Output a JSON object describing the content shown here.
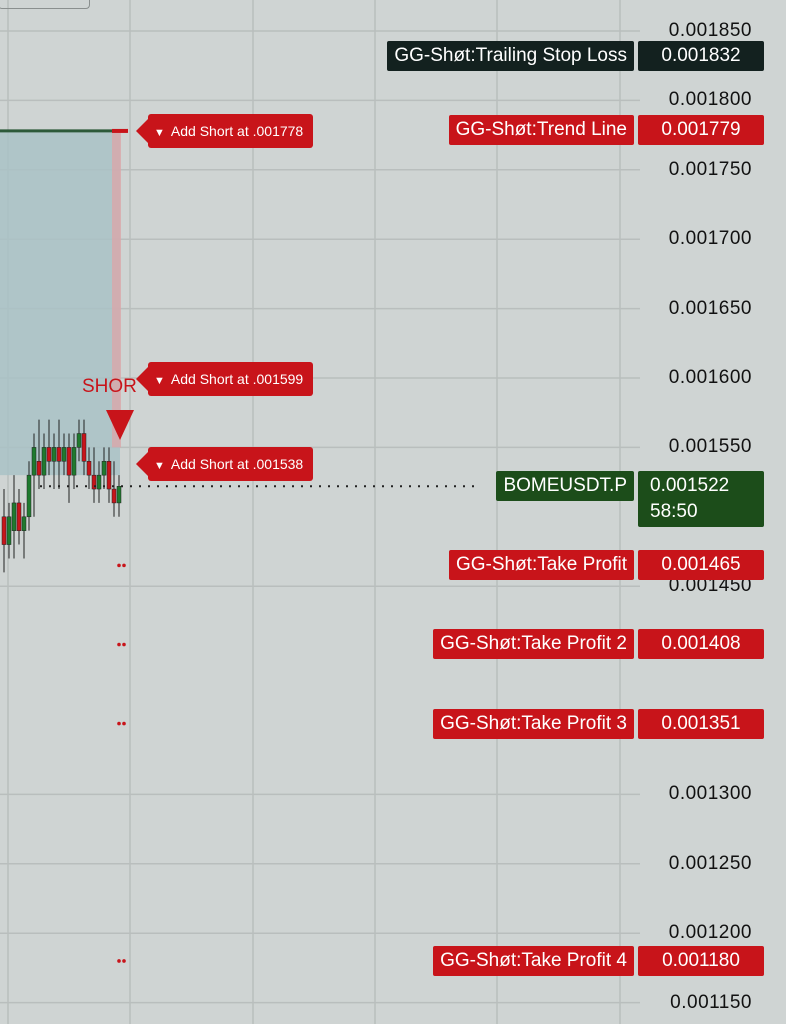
{
  "chart_data": {
    "type": "line",
    "symbol": "BOMEUSDT.P",
    "current_price": "0.001522",
    "countdown": "58:50",
    "y_axis_ticks": [
      "0.001850",
      "0.001800",
      "0.001750",
      "0.001700",
      "0.001650",
      "0.001600",
      "0.001550",
      "0.001450",
      "0.001300",
      "0.001250",
      "0.001200",
      "0.001150"
    ],
    "ylim": [
      0.001135,
      0.00187
    ],
    "price_lines": [
      {
        "name": "GG-Shøt:Trailing Stop Loss",
        "value": "0.001832",
        "style": "dark"
      },
      {
        "name": "GG-Shøt:Trend Line",
        "value": "0.001779",
        "style": "red"
      },
      {
        "name": "GG-Shøt:Take Profit",
        "value": "0.001465",
        "style": "red"
      },
      {
        "name": "GG-Shøt:Take Profit 2",
        "value": "0.001408",
        "style": "red"
      },
      {
        "name": "GG-Shøt:Take Profit 3",
        "value": "0.001351",
        "style": "red"
      },
      {
        "name": "GG-Shøt:Take Profit 4",
        "value": "0.001180",
        "style": "red"
      }
    ],
    "add_short_flags": [
      {
        "label": "Add Short at .001778",
        "price": 0.001778
      },
      {
        "label": "Add Short at .001599",
        "price": 0.001599
      },
      {
        "label": "Add Short at .001538",
        "price": 0.001538
      }
    ],
    "short_signal_label": "SHOR",
    "zone_top": 0.001778,
    "trend_line_price": 0.001779,
    "candles": [
      {
        "o": 0.0015,
        "h": 0.00152,
        "c": 0.00148,
        "l": 0.00146
      },
      {
        "o": 0.00148,
        "h": 0.00151,
        "c": 0.0015,
        "l": 0.00147
      },
      {
        "o": 0.00149,
        "h": 0.00153,
        "c": 0.00151,
        "l": 0.00147
      },
      {
        "o": 0.00151,
        "h": 0.00152,
        "c": 0.00149,
        "l": 0.00148
      },
      {
        "o": 0.00149,
        "h": 0.00151,
        "c": 0.0015,
        "l": 0.00147
      },
      {
        "o": 0.0015,
        "h": 0.00154,
        "c": 0.00153,
        "l": 0.00149
      },
      {
        "o": 0.00153,
        "h": 0.00156,
        "c": 0.00155,
        "l": 0.0015
      },
      {
        "o": 0.00154,
        "h": 0.00157,
        "c": 0.00153,
        "l": 0.00152
      },
      {
        "o": 0.00153,
        "h": 0.00156,
        "c": 0.00155,
        "l": 0.00152
      },
      {
        "o": 0.00155,
        "h": 0.00157,
        "c": 0.00154,
        "l": 0.00153
      },
      {
        "o": 0.00154,
        "h": 0.00156,
        "c": 0.00155,
        "l": 0.00152
      },
      {
        "o": 0.00155,
        "h": 0.00157,
        "c": 0.00154,
        "l": 0.00152
      },
      {
        "o": 0.00154,
        "h": 0.00156,
        "c": 0.00155,
        "l": 0.00153
      },
      {
        "o": 0.00155,
        "h": 0.00156,
        "c": 0.00153,
        "l": 0.00151
      },
      {
        "o": 0.00153,
        "h": 0.00156,
        "c": 0.00155,
        "l": 0.00152
      },
      {
        "o": 0.00155,
        "h": 0.00157,
        "c": 0.00156,
        "l": 0.00154
      },
      {
        "o": 0.00156,
        "h": 0.00157,
        "c": 0.00154,
        "l": 0.00153
      },
      {
        "o": 0.00154,
        "h": 0.00155,
        "c": 0.00153,
        "l": 0.00152
      },
      {
        "o": 0.00153,
        "h": 0.00155,
        "c": 0.00152,
        "l": 0.00151
      },
      {
        "o": 0.00152,
        "h": 0.00154,
        "c": 0.00153,
        "l": 0.00151
      },
      {
        "o": 0.00153,
        "h": 0.00155,
        "c": 0.00154,
        "l": 0.00152
      },
      {
        "o": 0.00154,
        "h": 0.00155,
        "c": 0.00152,
        "l": 0.00151
      },
      {
        "o": 0.00152,
        "h": 0.00154,
        "c": 0.00151,
        "l": 0.0015
      },
      {
        "o": 0.00151,
        "h": 0.00153,
        "c": 0.001522,
        "l": 0.0015
      }
    ],
    "colors": {
      "up": "#1f7a2e",
      "down": "#c8141a",
      "zone": "#a9c2c6",
      "background": "#cfd4d3",
      "grid": "#b9bebd"
    }
  }
}
